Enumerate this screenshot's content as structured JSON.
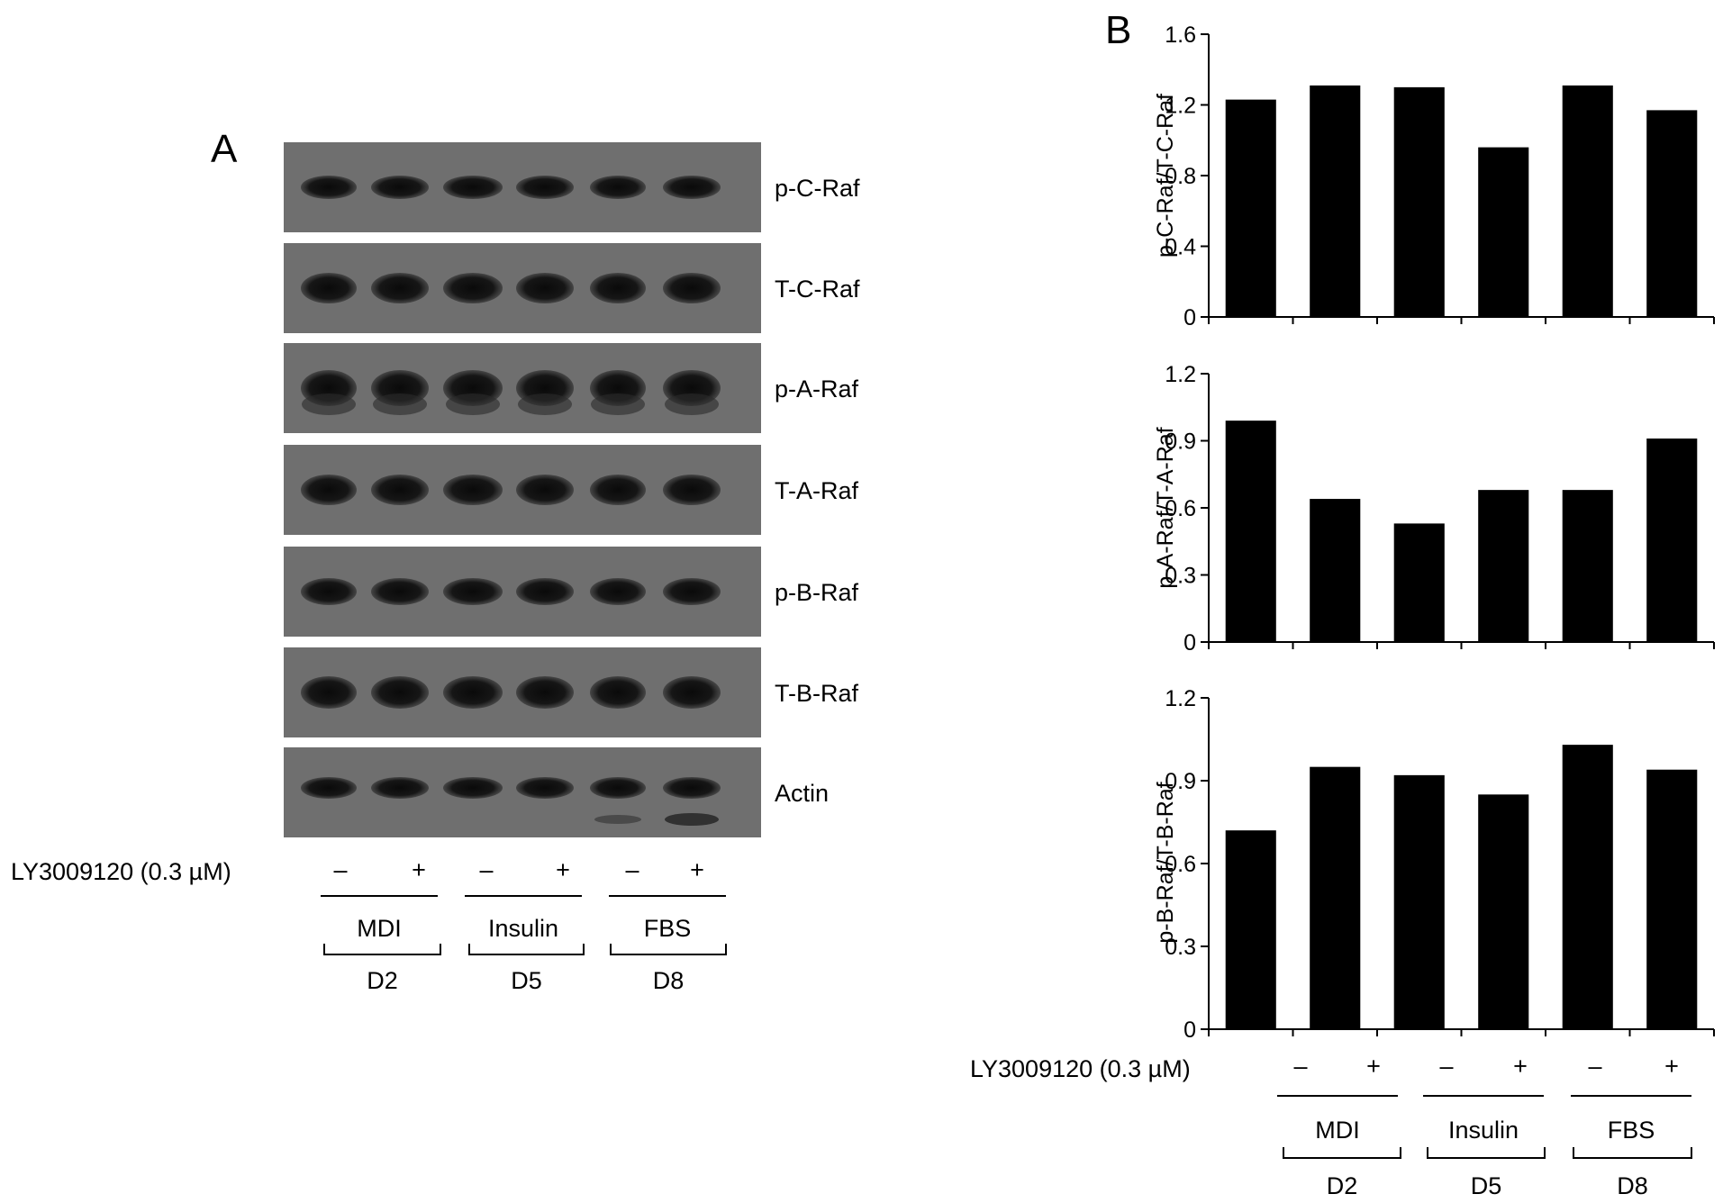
{
  "panel_a": {
    "letter": "A",
    "blot_labels": [
      "p-C-Raf",
      "T-C-Raf",
      "p-A-Raf",
      "T-A-Raf",
      "p-B-Raf",
      "T-B-Raf",
      "Actin"
    ],
    "treatment_label": "LY3009120 (0.3 µM)",
    "signs": [
      "–",
      "+",
      "–",
      "+",
      "–",
      "+"
    ],
    "groups": [
      "MDI",
      "Insulin",
      "FBS"
    ],
    "days": [
      "D2",
      "D5",
      "D8"
    ]
  },
  "panel_b": {
    "letter": "B",
    "treatment_label": "LY3009120 (0.3 µM)",
    "signs": [
      "–",
      "+",
      "–",
      "+",
      "–",
      "+"
    ],
    "groups": [
      "MDI",
      "Insulin",
      "FBS"
    ],
    "days": [
      "D2",
      "D5",
      "D8"
    ]
  },
  "chart_data": [
    {
      "type": "bar",
      "categories": [
        "MDI –",
        "MDI +",
        "Insulin –",
        "Insulin +",
        "FBS –",
        "FBS +"
      ],
      "values": [
        1.23,
        1.31,
        1.3,
        0.96,
        1.31,
        1.17
      ],
      "ylabel": "p-C-Raf/T-C-Raf",
      "ylim": [
        0,
        1.6
      ],
      "yticks": [
        "0",
        "0.4",
        "0.8",
        "1.2",
        "1.6"
      ],
      "yticks_values": [
        0,
        0.4,
        0.8,
        1.2,
        1.6
      ],
      "grid": false
    },
    {
      "type": "bar",
      "categories": [
        "MDI –",
        "MDI +",
        "Insulin –",
        "Insulin +",
        "FBS –",
        "FBS +"
      ],
      "values": [
        0.99,
        0.64,
        0.53,
        0.68,
        0.68,
        0.91
      ],
      "ylabel": "p-A-Raf/T-A-Raf",
      "ylim": [
        0,
        1.2
      ],
      "yticks": [
        "0",
        "0.3",
        "0.6",
        "0.9",
        "1.2"
      ],
      "yticks_values": [
        0,
        0.3,
        0.6,
        0.9,
        1.2
      ],
      "grid": false
    },
    {
      "type": "bar",
      "categories": [
        "MDI –",
        "MDI +",
        "Insulin –",
        "Insulin +",
        "FBS –",
        "FBS +"
      ],
      "values": [
        0.72,
        0.95,
        0.92,
        0.85,
        1.03,
        0.94
      ],
      "ylabel": "p-B-Raf/T-B-Raf",
      "ylim": [
        0,
        1.2
      ],
      "yticks": [
        "0",
        "0.3",
        "0.6",
        "0.9",
        "1.2"
      ],
      "yticks_values": [
        0,
        0.3,
        0.6,
        0.9,
        1.2
      ],
      "grid": false
    }
  ]
}
